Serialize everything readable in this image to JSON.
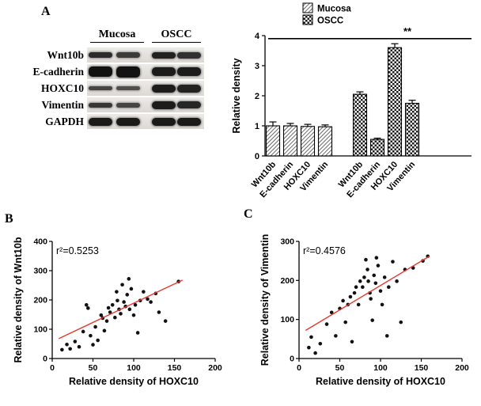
{
  "figure": {
    "panel_a_label": "A",
    "panel_b_label": "B",
    "panel_c_label": "C"
  },
  "blot": {
    "headers": [
      "Mucosa",
      "OSCC"
    ],
    "rows": [
      {
        "label": "Wnt10b",
        "bands": [
          [
            7,
            0.88
          ],
          [
            7,
            0.8
          ],
          [
            8,
            0.92
          ],
          [
            8,
            0.85
          ]
        ]
      },
      {
        "label": "E-cadherin",
        "bands": [
          [
            13,
            1.0
          ],
          [
            14,
            1.0
          ],
          [
            11,
            0.95
          ],
          [
            11,
            0.95
          ]
        ]
      },
      {
        "label": "HOXC10",
        "bands": [
          [
            5,
            0.75
          ],
          [
            5,
            0.7
          ],
          [
            10,
            0.95
          ],
          [
            10,
            0.92
          ]
        ]
      },
      {
        "label": "Vimentin",
        "bands": [
          [
            6,
            0.82
          ],
          [
            6,
            0.75
          ],
          [
            10,
            0.95
          ],
          [
            9,
            0.9
          ]
        ]
      },
      {
        "label": "GAPDH",
        "bands": [
          [
            10,
            0.96
          ],
          [
            10,
            0.96
          ],
          [
            10,
            0.96
          ],
          [
            10,
            0.96
          ]
        ]
      }
    ]
  },
  "chart_data": [
    {
      "type": "bar",
      "title": "",
      "ylabel": "Relative density",
      "ylim": [
        0,
        4
      ],
      "yticks": [
        0,
        1,
        2,
        3,
        4
      ],
      "categories": [
        "Wnt10b",
        "E-cadherin",
        "HOXC10",
        "Vimentin",
        "Wnt10b",
        "E-cadherin",
        "HOXC10",
        "Vimentin"
      ],
      "series": [
        {
          "name": "Mucosa",
          "pattern": "stripes",
          "values": [
            1.0,
            1.0,
            0.98,
            0.97
          ],
          "errors": [
            0.13,
            0.08,
            0.07,
            0.06
          ]
        },
        {
          "name": "OSCC",
          "pattern": "checker",
          "values": [
            2.05,
            0.55,
            3.6,
            1.75
          ],
          "errors": [
            0.08,
            0.04,
            0.13,
            0.1
          ]
        }
      ],
      "significance": "**",
      "significance_level": 3.9,
      "legend": [
        "Mucosa",
        "OSCC"
      ],
      "legend_position": "top",
      "bar_fill": "#ffffff",
      "outline_color": "#000000"
    },
    {
      "type": "scatter",
      "annotation": "r²=0.5253",
      "xlabel": "Relative density of HOXC10",
      "ylabel": "Relative density of Wnt10b",
      "xlim": [
        0,
        200
      ],
      "ylim": [
        0,
        400
      ],
      "xticks": [
        0,
        50,
        100,
        150,
        200
      ],
      "yticks": [
        0,
        100,
        200,
        300,
        400
      ],
      "point_color": "#111111",
      "line_color": "#e8392f",
      "fit_line": {
        "x": [
          8,
          160
        ],
        "y": [
          68,
          268
        ]
      },
      "points": [
        [
          12,
          30
        ],
        [
          18,
          48
        ],
        [
          22,
          33
        ],
        [
          28,
          58
        ],
        [
          33,
          40
        ],
        [
          38,
          92
        ],
        [
          42,
          183
        ],
        [
          44,
          172
        ],
        [
          47,
          78
        ],
        [
          50,
          47
        ],
        [
          53,
          108
        ],
        [
          56,
          62
        ],
        [
          60,
          148
        ],
        [
          62,
          138
        ],
        [
          64,
          95
        ],
        [
          67,
          128
        ],
        [
          69,
          173
        ],
        [
          71,
          158
        ],
        [
          74,
          183
        ],
        [
          77,
          140
        ],
        [
          79,
          228
        ],
        [
          80,
          198
        ],
        [
          82,
          168
        ],
        [
          84,
          153
        ],
        [
          86,
          252
        ],
        [
          88,
          193
        ],
        [
          90,
          178
        ],
        [
          92,
          218
        ],
        [
          94,
          272
        ],
        [
          95,
          168
        ],
        [
          97,
          238
        ],
        [
          100,
          148
        ],
        [
          102,
          183
        ],
        [
          105,
          88
        ],
        [
          108,
          198
        ],
        [
          112,
          228
        ],
        [
          117,
          203
        ],
        [
          121,
          193
        ],
        [
          127,
          222
        ],
        [
          131,
          158
        ],
        [
          139,
          128
        ],
        [
          155,
          263
        ]
      ]
    },
    {
      "type": "scatter",
      "annotation": "r²=0.4576",
      "xlabel": "Relative density of HOXC10",
      "ylabel": "Relative density of Vimentin",
      "xlim": [
        0,
        200
      ],
      "ylim": [
        0,
        300
      ],
      "xticks": [
        0,
        50,
        100,
        150,
        200
      ],
      "yticks": [
        0,
        100,
        200,
        300
      ],
      "point_color": "#111111",
      "line_color": "#e8392f",
      "fit_line": {
        "x": [
          8,
          160
        ],
        "y": [
          72,
          262
        ]
      },
      "points": [
        [
          12,
          28
        ],
        [
          15,
          55
        ],
        [
          20,
          14
        ],
        [
          26,
          38
        ],
        [
          34,
          88
        ],
        [
          40,
          118
        ],
        [
          45,
          58
        ],
        [
          50,
          128
        ],
        [
          54,
          148
        ],
        [
          57,
          93
        ],
        [
          60,
          138
        ],
        [
          63,
          158
        ],
        [
          65,
          43
        ],
        [
          68,
          168
        ],
        [
          70,
          183
        ],
        [
          73,
          138
        ],
        [
          75,
          198
        ],
        [
          78,
          183
        ],
        [
          80,
          208
        ],
        [
          82,
          253
        ],
        [
          84,
          228
        ],
        [
          85,
          198
        ],
        [
          87,
          168
        ],
        [
          88,
          153
        ],
        [
          90,
          98
        ],
        [
          92,
          213
        ],
        [
          94,
          193
        ],
        [
          95,
          258
        ],
        [
          97,
          238
        ],
        [
          100,
          173
        ],
        [
          102,
          138
        ],
        [
          105,
          208
        ],
        [
          108,
          58
        ],
        [
          110,
          183
        ],
        [
          115,
          248
        ],
        [
          120,
          198
        ],
        [
          125,
          93
        ],
        [
          130,
          228
        ],
        [
          140,
          232
        ],
        [
          152,
          250
        ],
        [
          158,
          262
        ]
      ]
    }
  ]
}
